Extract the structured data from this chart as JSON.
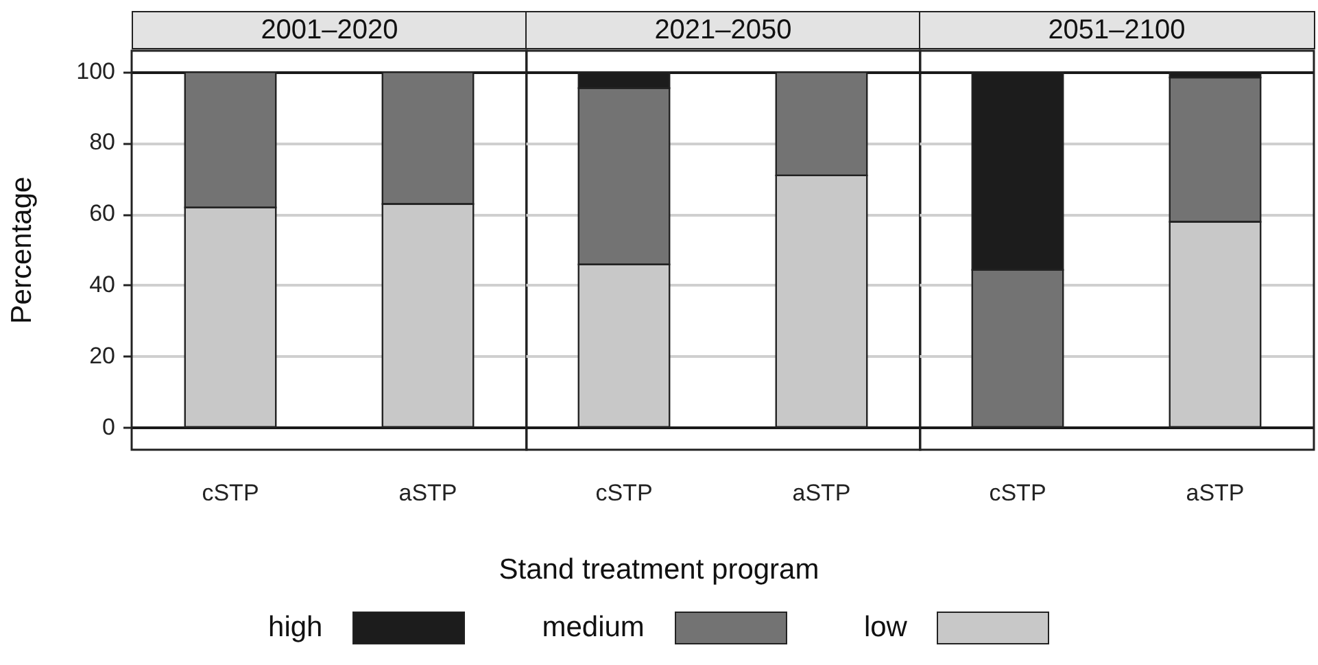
{
  "chart_data": [
    {
      "type": "bar",
      "title": "2001–2020",
      "ylabel": "Percentage",
      "categories": [
        "cSTP",
        "aSTP"
      ],
      "stacked": true,
      "ylim": [
        -6,
        106
      ],
      "yticks": [
        0,
        20,
        40,
        60,
        80,
        100
      ],
      "grid": "y",
      "legend": "bottom",
      "series": [
        {
          "name": "low",
          "color": "#c8c8c8",
          "values": [
            62,
            63
          ]
        },
        {
          "name": "medium",
          "color": "#737373",
          "values": [
            38,
            37
          ]
        },
        {
          "name": "high",
          "color": "#1c1c1c",
          "values": [
            0,
            0
          ]
        }
      ]
    },
    {
      "type": "bar",
      "title": "2021–2050",
      "xlabel": "Stand treatment program",
      "categories": [
        "cSTP",
        "aSTP"
      ],
      "stacked": true,
      "ylim": [
        -6,
        106
      ],
      "yticks": [
        0,
        20,
        40,
        60,
        80,
        100
      ],
      "grid": "y",
      "tick_labels": "x",
      "series": [
        {
          "color": "#c8c8c8",
          "values": [
            46,
            71
          ]
        },
        {
          "color": "#737373",
          "values": [
            49.5,
            29
          ]
        },
        {
          "color": "#1c1c1c",
          "values": [
            4.5,
            0
          ]
        }
      ]
    },
    {
      "type": "bar",
      "title": "2051–2100",
      "categories": [
        "cSTP",
        "aSTP"
      ],
      "stacked": true,
      "ylim": [
        -6,
        106
      ],
      "yticks": [
        0,
        20,
        40,
        60,
        80,
        100
      ],
      "grid": "y",
      "tick_labels": "x",
      "series": [
        {
          "color": "#c8c8c8",
          "values": [
            0,
            58
          ]
        },
        {
          "color": "#737373",
          "values": [
            44.5,
            40.5
          ]
        },
        {
          "color": "#1c1c1c",
          "values": [
            55.5,
            1.5
          ]
        }
      ]
    }
  ]
}
